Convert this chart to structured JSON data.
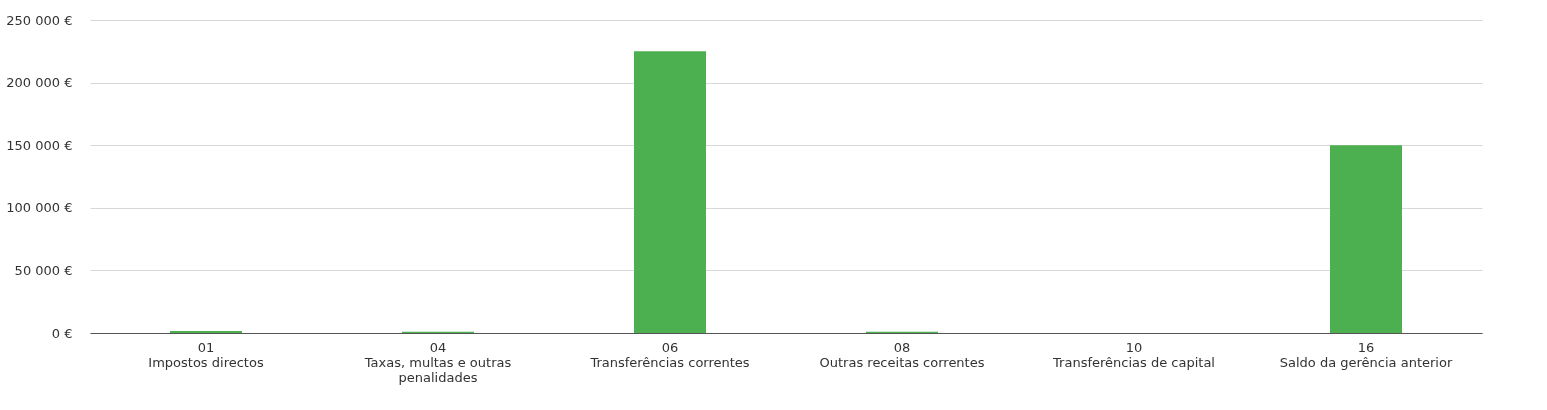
{
  "chart_data": {
    "type": "bar",
    "categories": [
      "01\nImpostos directos",
      "04\nTaxas, multas e outras\npenalidades",
      "06\nTransferências correntes",
      "08\nOutras receitas correntes",
      "10\nTransferências de capital",
      "16\nSaldo da gerência anterior"
    ],
    "values": [
      1500,
      1000,
      225000,
      1000,
      0,
      150000
    ],
    "color": "#4caf50",
    "ylim": [
      0,
      250000
    ],
    "yticks": [
      {
        "value": 0,
        "label": "0 €"
      },
      {
        "value": 50000,
        "label": "50 000 €"
      },
      {
        "value": 100000,
        "label": "100 000 €"
      },
      {
        "value": 150000,
        "label": "150 000 €"
      },
      {
        "value": 200000,
        "label": "200 000 €"
      },
      {
        "value": 250000,
        "label": "250 000 €"
      }
    ],
    "grid": "y"
  }
}
